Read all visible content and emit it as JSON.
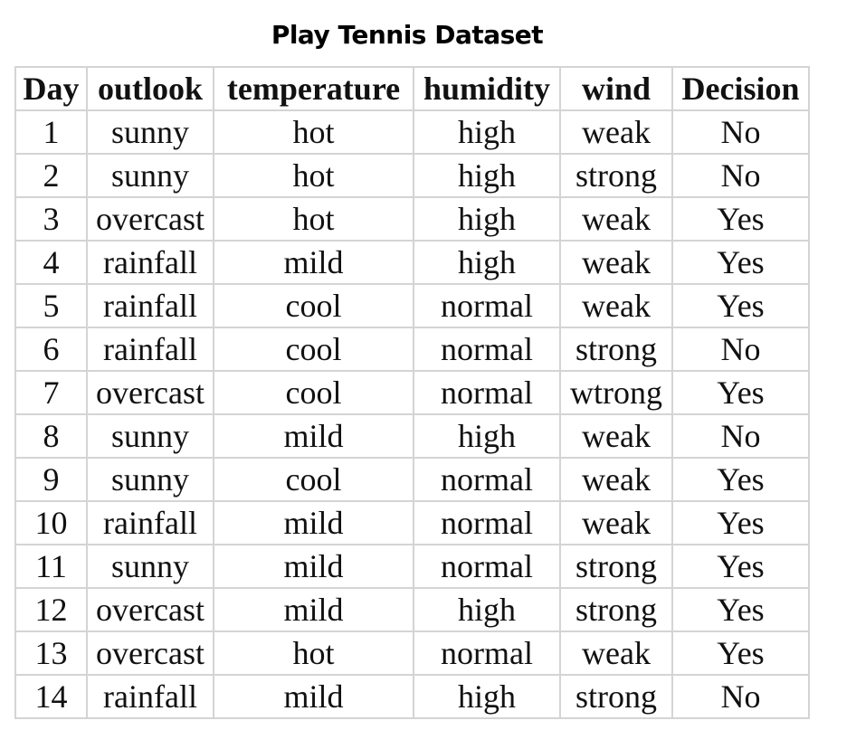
{
  "title": "Play Tennis Dataset",
  "table": {
    "headers": [
      "Day",
      "outlook",
      "temperature",
      "humidity",
      "wind",
      "Decision"
    ],
    "rows": [
      [
        "1",
        "sunny",
        "hot",
        "high",
        "weak",
        "No"
      ],
      [
        "2",
        "sunny",
        "hot",
        "high",
        "strong",
        "No"
      ],
      [
        "3",
        "overcast",
        "hot",
        "high",
        "weak",
        "Yes"
      ],
      [
        "4",
        "rainfall",
        "mild",
        "high",
        "weak",
        "Yes"
      ],
      [
        "5",
        "rainfall",
        "cool",
        "normal",
        "weak",
        "Yes"
      ],
      [
        "6",
        "rainfall",
        "cool",
        "normal",
        "strong",
        "No"
      ],
      [
        "7",
        "overcast",
        "cool",
        "normal",
        "wtrong",
        "Yes"
      ],
      [
        "8",
        "sunny",
        "mild",
        "high",
        "weak",
        "No"
      ],
      [
        "9",
        "sunny",
        "cool",
        "normal",
        "weak",
        "Yes"
      ],
      [
        "10",
        "rainfall",
        "mild",
        "normal",
        "weak",
        "Yes"
      ],
      [
        "11",
        "sunny",
        "mild",
        "normal",
        "strong",
        "Yes"
      ],
      [
        "12",
        "overcast",
        "mild",
        "high",
        "strong",
        "Yes"
      ],
      [
        "13",
        "overcast",
        "hot",
        "normal",
        "weak",
        "Yes"
      ],
      [
        "14",
        "rainfall",
        "mild",
        "high",
        "strong",
        "No"
      ]
    ]
  },
  "colors": {
    "text": "#111111",
    "grid": "#d4d4d4",
    "background": "#ffffff"
  }
}
